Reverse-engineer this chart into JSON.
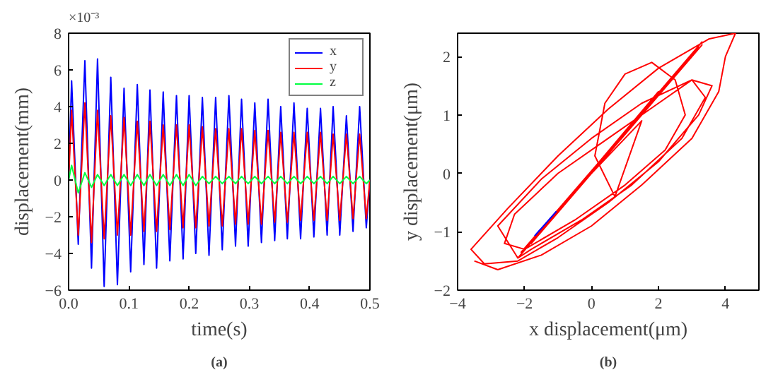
{
  "chart_data": [
    {
      "type": "line",
      "xlabel": "time(s)",
      "ylabel": "displacement(mm)",
      "annotations": [
        "×10⁻³",
        "(a)"
      ],
      "x": [
        0.0,
        0.005,
        0.016,
        0.027,
        0.038,
        0.048,
        0.059,
        0.07,
        0.081,
        0.092,
        0.103,
        0.114,
        0.125,
        0.135,
        0.146,
        0.157,
        0.168,
        0.179,
        0.19,
        0.2,
        0.211,
        0.222,
        0.233,
        0.244,
        0.255,
        0.266,
        0.277,
        0.287,
        0.298,
        0.309,
        0.32,
        0.331,
        0.342,
        0.352,
        0.363,
        0.374,
        0.385,
        0.396,
        0.407,
        0.418,
        0.429,
        0.439,
        0.45,
        0.461,
        0.472,
        0.483,
        0.494,
        0.5
      ],
      "series": [
        {
          "name": "x",
          "color": "#0000ff",
          "values": [
            0,
            5.4,
            -3.5,
            6.5,
            -4.8,
            6.6,
            -5.8,
            5.6,
            -5.7,
            5.0,
            -5.0,
            5.2,
            -4.6,
            4.9,
            -4.8,
            4.8,
            -4.4,
            4.6,
            -4.3,
            4.6,
            -4.0,
            4.5,
            -4.1,
            4.5,
            -3.8,
            4.6,
            -3.6,
            4.4,
            -3.6,
            4.2,
            -3.4,
            4.4,
            -3.3,
            4.0,
            -3.2,
            4.2,
            -3.2,
            3.9,
            -3.1,
            3.9,
            -3.0,
            4.0,
            -3.0,
            3.5,
            -2.8,
            4.0,
            -2.6,
            0
          ]
        },
        {
          "name": "y",
          "color": "#ff0000",
          "values": [
            0,
            3.8,
            -3.0,
            4.2,
            -3.4,
            3.8,
            -3.2,
            3.5,
            -3.0,
            3.4,
            -3.0,
            3.2,
            -2.8,
            3.2,
            -2.8,
            3.0,
            -2.7,
            3.0,
            -2.6,
            3.0,
            -2.6,
            2.9,
            -2.5,
            2.8,
            -2.5,
            2.8,
            -2.4,
            2.8,
            -2.4,
            2.7,
            -2.4,
            2.7,
            -2.3,
            2.6,
            -2.3,
            2.6,
            -2.2,
            2.6,
            -2.2,
            2.6,
            -2.2,
            2.5,
            -2.2,
            2.5,
            -2.1,
            2.5,
            -2.1,
            0
          ]
        },
        {
          "name": "z",
          "color": "#00ff40",
          "values": [
            0,
            0.8,
            -0.7,
            0.4,
            -0.4,
            0.3,
            -0.3,
            0.3,
            -0.3,
            0.3,
            -0.3,
            0.3,
            -0.3,
            0.3,
            -0.3,
            0.3,
            -0.3,
            0.3,
            -0.3,
            0.3,
            -0.3,
            0.2,
            -0.2,
            0.2,
            -0.2,
            0.2,
            -0.2,
            0.2,
            -0.2,
            0.2,
            -0.2,
            0.2,
            -0.2,
            0.2,
            -0.2,
            0.2,
            -0.2,
            0.2,
            -0.2,
            0.2,
            -0.2,
            0.2,
            -0.2,
            0.2,
            -0.2,
            0.2,
            -0.2,
            0
          ]
        }
      ],
      "xlim": [
        0,
        0.5
      ],
      "ylim": [
        -6,
        8
      ],
      "xticks": [
        {
          "value": 0,
          "label": "0.0"
        },
        0.1,
        0.2,
        0.3,
        0.4,
        0.5
      ],
      "yticks": [
        -6,
        -4,
        -2,
        0,
        2,
        4,
        6,
        8
      ],
      "legend": "top right",
      "grid": false
    },
    {
      "type": "line",
      "xlabel": "x displacement(μm)",
      "ylabel": "y displacement(μm)",
      "annotations": [
        "(b)"
      ],
      "series": [
        {
          "color": "#ff0000",
          "x": [
            -3.5,
            -2.8,
            -1.5,
            0,
            1.5,
            3,
            3.8,
            4.0,
            4.3,
            3.5,
            2,
            0.5,
            -1,
            -2.5,
            -3.6,
            -3.2,
            -2.2,
            -1,
            0.5,
            2,
            3.2,
            3.6,
            3.0,
            1.5,
            0,
            -1.5,
            -2.8,
            -2.2,
            3.3,
            -2.0,
            3.2,
            -1.8,
            3.0,
            -1.5,
            2.8,
            -2.1,
            3.3,
            -1.2,
            2.0,
            -0.5,
            1.5,
            0.7,
            0.1,
            0.4,
            1.0,
            1.8,
            2.5,
            2.8,
            2.2,
            1.0,
            -0.5,
            -2.0,
            -2.6,
            -2.3,
            -1.0,
            0.5,
            2.0,
            3.0,
            3.4,
            2.7,
            1.2,
            -0.3,
            -1.8,
            -2.2,
            3.3
          ],
          "values": [
            -1.5,
            -1.65,
            -1.4,
            -0.9,
            -0.2,
            0.6,
            1.4,
            2.0,
            2.4,
            2.3,
            1.8,
            1.1,
            0.3,
            -0.6,
            -1.3,
            -1.55,
            -1.5,
            -1.1,
            -0.5,
            0.2,
            1.0,
            1.5,
            1.6,
            1.2,
            0.6,
            -0.1,
            -0.9,
            -1.45,
            2.25,
            -1.3,
            2.15,
            -1.2,
            2.0,
            -1.0,
            1.9,
            -1.35,
            2.2,
            -0.8,
            1.4,
            -0.3,
            0.9,
            -0.4,
            0.3,
            1.2,
            1.7,
            1.9,
            1.6,
            1.0,
            0.4,
            -0.2,
            -0.8,
            -1.3,
            -1.2,
            -0.7,
            0.0,
            0.6,
            1.2,
            1.6,
            1.3,
            0.6,
            -0.2,
            -0.8,
            -1.3,
            -1.45,
            2.25
          ]
        },
        {
          "color": "#0000ff",
          "x": [
            -1.7,
            -1.05
          ],
          "values": [
            -1.07,
            -0.65
          ]
        }
      ],
      "xlim": [
        -4,
        5
      ],
      "ylim": [
        -2,
        2.4
      ],
      "xticks": [
        -4,
        -2,
        0,
        2,
        4
      ],
      "yticks": [
        -2,
        -1,
        0,
        1,
        2
      ],
      "grid": false
    }
  ]
}
